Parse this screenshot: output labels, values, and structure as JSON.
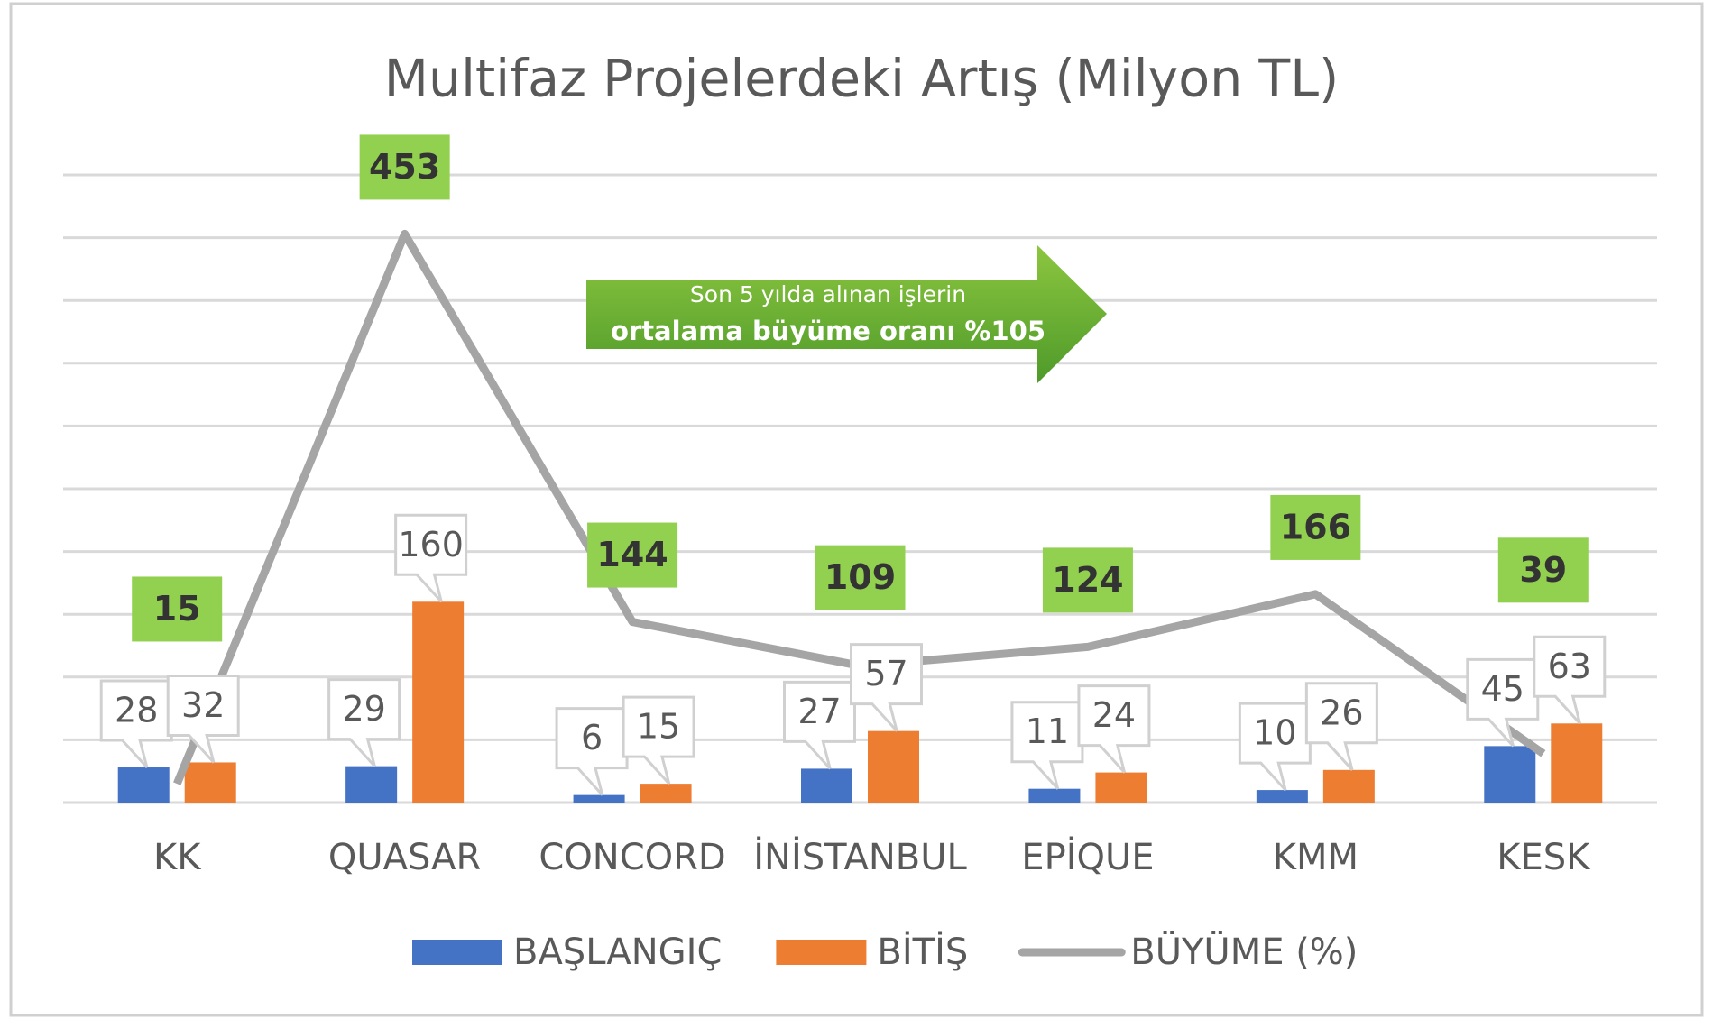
{
  "chart_data": {
    "type": "bar",
    "title": "Multifaz Projelerdeki Artış (Milyon TL)",
    "categories": [
      "KK",
      "QUASAR",
      "CONCORD",
      "İNİSTANBUL",
      "EPİQUE",
      "KMM",
      "KESK"
    ],
    "series": [
      {
        "name": "BAŞLANGIÇ",
        "color": "#4472c4",
        "values": [
          28,
          29,
          6,
          27,
          11,
          10,
          45
        ]
      },
      {
        "name": "BİTİŞ",
        "color": "#ed7d31",
        "values": [
          32,
          160,
          15,
          57,
          24,
          26,
          63
        ]
      },
      {
        "name": "BÜYÜME (%)",
        "type": "line",
        "axis": "y2",
        "color": "#a5a5a5",
        "values": [
          15,
          453,
          144,
          109,
          124,
          166,
          39
        ]
      }
    ],
    "ylim": [
      0,
      500
    ],
    "yticks": [
      0,
      50,
      100,
      150,
      200,
      250,
      300,
      350,
      400,
      450,
      500
    ],
    "y2lim": [
      0,
      500
    ],
    "grid": true,
    "legend": "bottom",
    "annotations": [
      "Son 5 yılda alınan işlerin",
      "ortalama büyüme oranı  %105"
    ]
  }
}
